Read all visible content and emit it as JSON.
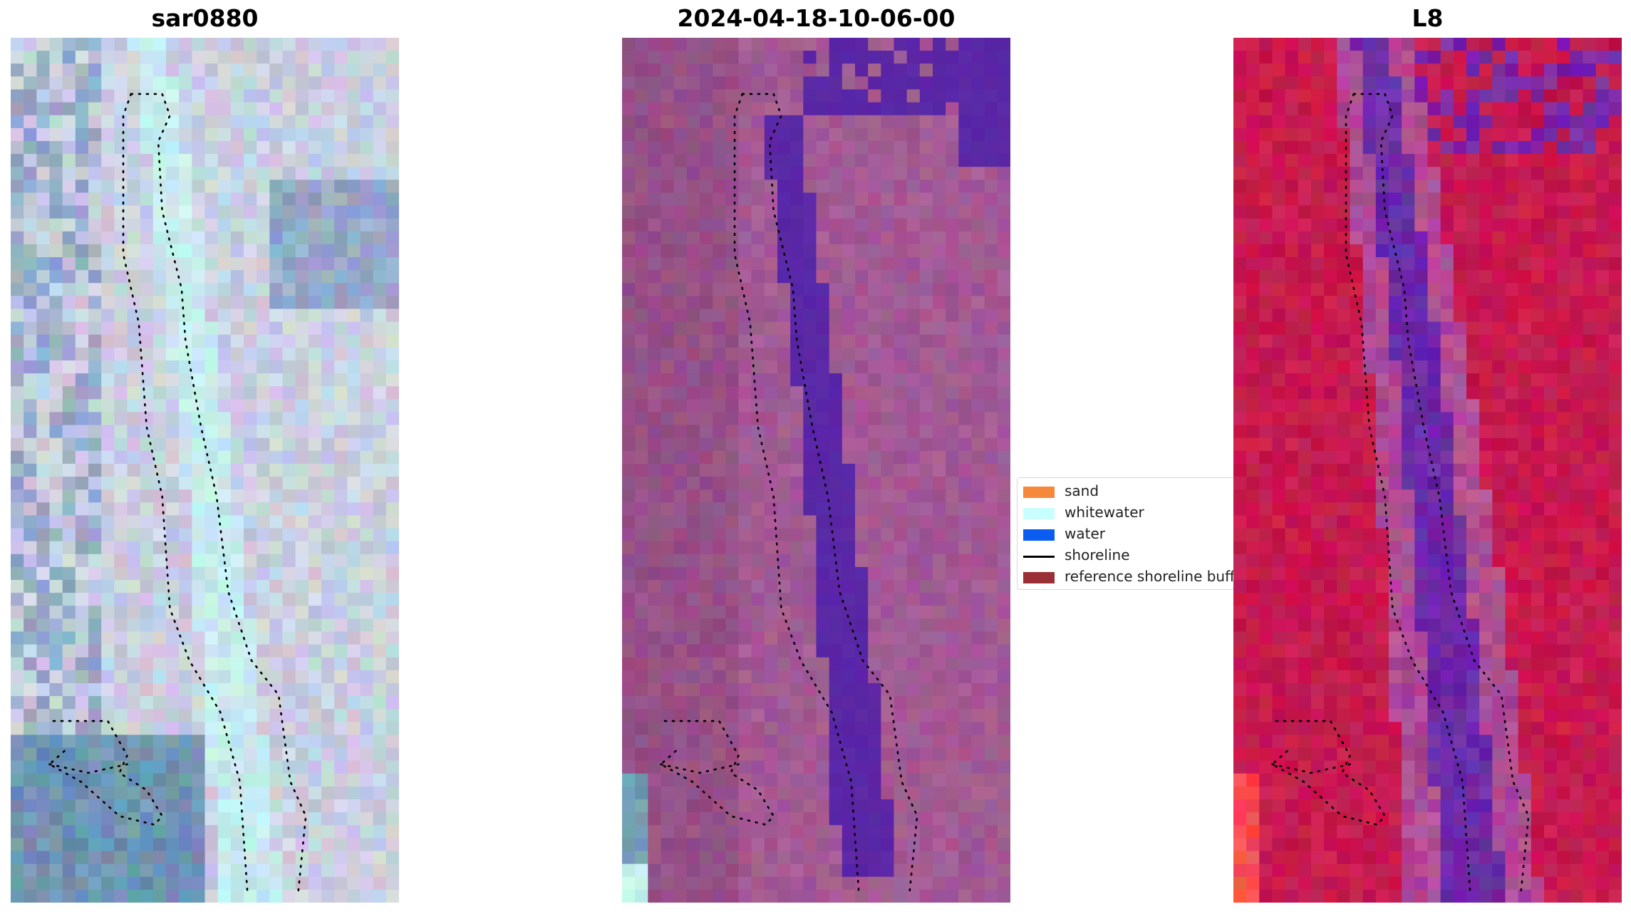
{
  "panels": [
    {
      "title": "sar0880",
      "style": "true-color",
      "colors": {
        "land": "#c9cfe0",
        "water": "#6f93b3",
        "whitewater": "#c6ecef"
      }
    },
    {
      "title": "2024-04-18-10-06-00",
      "style": "classified",
      "colors": {
        "land": "#a35a94",
        "water": "#5a27a6",
        "whitewater": "#c7f2f2"
      }
    },
    {
      "title": "L8",
      "style": "false-color",
      "colors": {
        "land": "#c71a4f",
        "water": "#6b2aa8",
        "bright": "#ff4a4a"
      }
    }
  ],
  "legend": {
    "items": [
      {
        "label": "sand",
        "color": "#f5883b",
        "kind": "patch"
      },
      {
        "label": "whitewater",
        "color": "#c8fefe",
        "kind": "patch"
      },
      {
        "label": "water",
        "color": "#0b5cf0",
        "kind": "patch"
      },
      {
        "label": "shoreline",
        "color": "#000000",
        "kind": "line"
      },
      {
        "label": "reference shoreline buffer",
        "color": "#9a3035",
        "kind": "patch"
      }
    ]
  }
}
